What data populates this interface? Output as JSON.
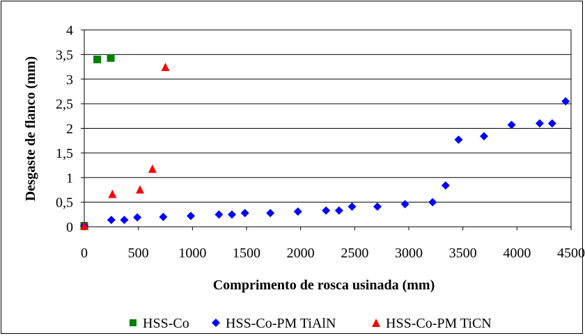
{
  "chart_data": {
    "type": "scatter",
    "xlabel": "Comprimento de rosca usinada (mm)",
    "ylabel": "Desgaste de flanco  (mm)",
    "xlim": [
      0,
      4500
    ],
    "ylim": [
      0,
      4
    ],
    "x_ticks": [
      0,
      500,
      1000,
      1500,
      2000,
      2500,
      3000,
      3500,
      4000,
      4500
    ],
    "x_tick_labels": [
      "0",
      "500",
      "1000",
      "1500",
      "2000",
      "2500",
      "3000",
      "3500",
      "4000",
      "4500"
    ],
    "y_ticks": [
      0,
      0.5,
      1,
      1.5,
      2,
      2.5,
      3,
      3.5,
      4
    ],
    "y_tick_labels": [
      "0",
      "0,5",
      "1",
      "1,5",
      "2",
      "2,5",
      "3",
      "3,5",
      "4"
    ],
    "grid": "horizontal",
    "legend_position": "bottom",
    "series": [
      {
        "name": "HSS-Co",
        "marker": "square",
        "color": "#008000",
        "points": [
          [
            0,
            0.02
          ],
          [
            120,
            3.4
          ],
          [
            245,
            3.43
          ]
        ]
      },
      {
        "name": "HSS-Co-PM TiAlN",
        "marker": "diamond",
        "color": "#0000ff",
        "points": [
          [
            0,
            0.02
          ],
          [
            250,
            0.14
          ],
          [
            370,
            0.14
          ],
          [
            490,
            0.19
          ],
          [
            730,
            0.2
          ],
          [
            985,
            0.22
          ],
          [
            1245,
            0.25
          ],
          [
            1365,
            0.25
          ],
          [
            1485,
            0.28
          ],
          [
            1720,
            0.28
          ],
          [
            1975,
            0.31
          ],
          [
            2235,
            0.33
          ],
          [
            2355,
            0.33
          ],
          [
            2475,
            0.41
          ],
          [
            2710,
            0.41
          ],
          [
            2965,
            0.46
          ],
          [
            3220,
            0.5
          ],
          [
            3340,
            0.84
          ],
          [
            3460,
            1.77
          ],
          [
            3695,
            1.84
          ],
          [
            3950,
            2.07
          ],
          [
            4210,
            2.1
          ],
          [
            4325,
            2.1
          ],
          [
            4450,
            2.55
          ]
        ]
      },
      {
        "name": "HSS-Co-PM TiCN",
        "marker": "triangle",
        "color": "#ff0000",
        "points": [
          [
            0,
            0.02
          ],
          [
            260,
            0.67
          ],
          [
            515,
            0.76
          ],
          [
            630,
            1.18
          ],
          [
            750,
            3.25
          ]
        ]
      }
    ]
  }
}
